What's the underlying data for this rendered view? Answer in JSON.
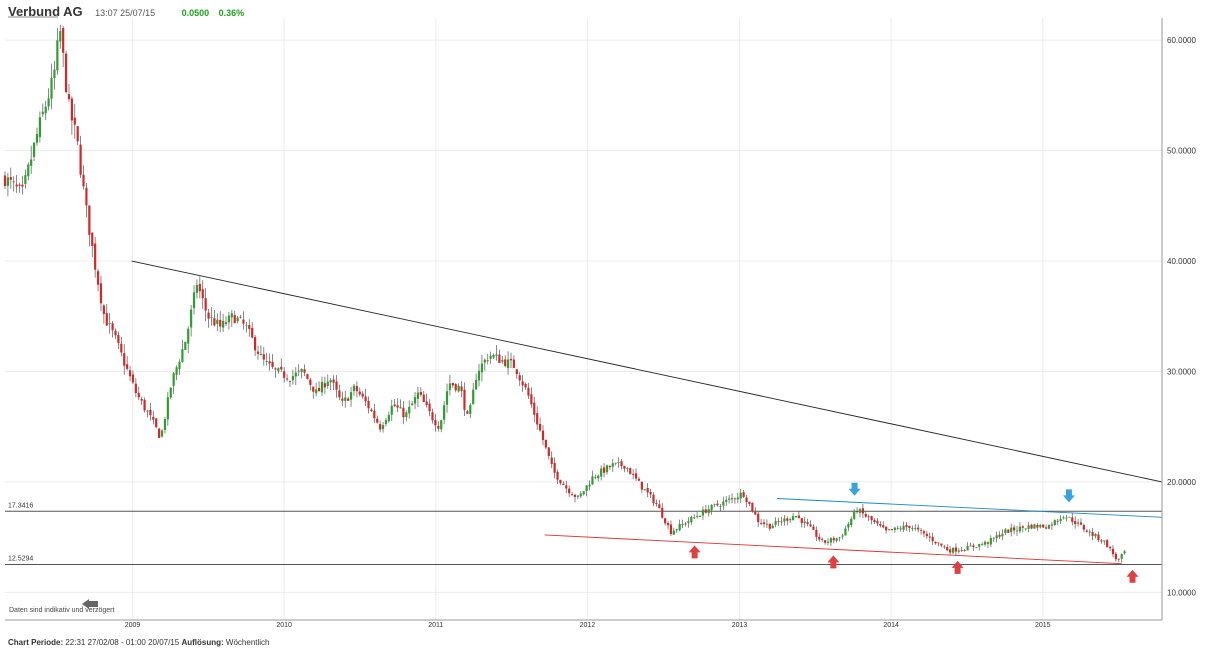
{
  "header": {
    "title": "Verbund AG",
    "timestamp": "13:07 25/07/15",
    "change_abs": "0.0500",
    "change_pct": "0.36%",
    "change_color": "#1fa01f"
  },
  "footer": {
    "period_label": "Chart Periode:",
    "period_value": "22:31 27/02/08 - 01:00 20/07/15",
    "resolution_label": "Auflösung:",
    "resolution_value": "Wöchentlich"
  },
  "disclaimer": "Daten sind indikativ und verzögert",
  "chart_data": {
    "type": "candlestick",
    "title": "Verbund AG",
    "x_start": "2008-02-29",
    "x_end": "2015-10-15",
    "ylim": [
      7.5,
      62
    ],
    "yticks": [
      10,
      20,
      30,
      40,
      50,
      60
    ],
    "ytick_labels": [
      "10.0000",
      "20.0000",
      "30.0000",
      "40.0000",
      "50.0000",
      "60.0000"
    ],
    "xticks": [
      "2009",
      "2010",
      "2011",
      "2012",
      "2013",
      "2014",
      "2015"
    ],
    "xtick_dates": [
      "2009-01-01",
      "2010-01-01",
      "2011-01-01",
      "2012-01-01",
      "2013-01-01",
      "2014-01-01",
      "2015-01-01"
    ],
    "grid": true,
    "up_color": "#2ca02c",
    "down_color": "#d62728",
    "close_anchors": [
      [
        "2008-02-29",
        47.5
      ],
      [
        "2008-04-10",
        46.0
      ],
      [
        "2008-05-20",
        52.0
      ],
      [
        "2008-06-25",
        56.5
      ],
      [
        "2008-07-10",
        61.0
      ],
      [
        "2008-07-31",
        54.0
      ],
      [
        "2008-08-20",
        51.0
      ],
      [
        "2008-09-10",
        45.0
      ],
      [
        "2008-10-01",
        40.0
      ],
      [
        "2008-10-25",
        35.0
      ],
      [
        "2008-11-20",
        33.0
      ],
      [
        "2008-12-15",
        30.5
      ],
      [
        "2009-01-10",
        28.0
      ],
      [
        "2009-02-10",
        26.0
      ],
      [
        "2009-03-10",
        24.0
      ],
      [
        "2009-04-05",
        29.0
      ],
      [
        "2009-05-10",
        33.0
      ],
      [
        "2009-06-05",
        38.0
      ],
      [
        "2009-07-01",
        35.0
      ],
      [
        "2009-08-01",
        34.0
      ],
      [
        "2009-09-01",
        35.0
      ],
      [
        "2009-10-01",
        34.0
      ],
      [
        "2009-11-10",
        31.0
      ],
      [
        "2009-12-10",
        30.0
      ],
      [
        "2010-01-15",
        29.5
      ],
      [
        "2010-02-15",
        30.0
      ],
      [
        "2010-03-20",
        28.0
      ],
      [
        "2010-04-20",
        29.5
      ],
      [
        "2010-05-20",
        27.0
      ],
      [
        "2010-06-20",
        28.5
      ],
      [
        "2010-07-20",
        27.0
      ],
      [
        "2010-08-20",
        25.0
      ],
      [
        "2010-09-20",
        27.0
      ],
      [
        "2010-10-20",
        26.0
      ],
      [
        "2010-11-20",
        28.0
      ],
      [
        "2010-12-20",
        26.0
      ],
      [
        "2011-01-10",
        25.0
      ],
      [
        "2011-02-01",
        29.0
      ],
      [
        "2011-03-01",
        28.5
      ],
      [
        "2011-03-20",
        25.5
      ],
      [
        "2011-04-10",
        30.0
      ],
      [
        "2011-05-10",
        31.5
      ],
      [
        "2011-06-10",
        31.0
      ],
      [
        "2011-07-10",
        30.5
      ],
      [
        "2011-08-10",
        28.0
      ],
      [
        "2011-09-10",
        24.5
      ],
      [
        "2011-10-10",
        21.0
      ],
      [
        "2011-11-10",
        19.5
      ],
      [
        "2011-12-10",
        18.5
      ],
      [
        "2012-01-15",
        20.5
      ],
      [
        "2012-03-01",
        21.5
      ],
      [
        "2012-04-01",
        21.5
      ],
      [
        "2012-05-01",
        20.0
      ],
      [
        "2012-06-15",
        18.0
      ],
      [
        "2012-07-20",
        15.5
      ],
      [
        "2012-09-01",
        16.5
      ],
      [
        "2012-10-15",
        17.5
      ],
      [
        "2012-12-15",
        18.5
      ],
      [
        "2013-01-10",
        19.0
      ],
      [
        "2013-02-15",
        16.5
      ],
      [
        "2013-03-15",
        16.0
      ],
      [
        "2013-04-15",
        16.5
      ],
      [
        "2013-05-15",
        17.0
      ],
      [
        "2013-06-15",
        16.0
      ],
      [
        "2013-07-20",
        14.5
      ],
      [
        "2013-09-01",
        15.0
      ],
      [
        "2013-10-10",
        17.5
      ],
      [
        "2013-11-15",
        16.5
      ],
      [
        "2013-12-20",
        15.5
      ],
      [
        "2014-02-15",
        16.0
      ],
      [
        "2014-04-01",
        15.0
      ],
      [
        "2014-05-20",
        13.8
      ],
      [
        "2014-07-01",
        14.0
      ],
      [
        "2014-08-20",
        14.5
      ],
      [
        "2014-10-01",
        15.5
      ],
      [
        "2014-12-01",
        16.0
      ],
      [
        "2015-01-15",
        16.0
      ],
      [
        "2015-02-20",
        17.0
      ],
      [
        "2015-03-15",
        16.5
      ],
      [
        "2015-04-20",
        15.5
      ],
      [
        "2015-06-01",
        14.5
      ],
      [
        "2015-07-01",
        12.8
      ],
      [
        "2015-07-20",
        13.8
      ]
    ],
    "hlines": [
      {
        "y": 17.3416,
        "label": "17.3416",
        "color": "#555555"
      },
      {
        "y": 12.5294,
        "label": "12.5294",
        "color": "#555555"
      }
    ],
    "trendlines": [
      {
        "x1": "2008-12-30",
        "y1": 40.0,
        "x2": "2015-10-15",
        "y2": 20.0,
        "color": "#222222"
      },
      {
        "x1": "2013-04-01",
        "y1": 18.5,
        "x2": "2015-10-15",
        "y2": 16.8,
        "color": "#1e88c8"
      },
      {
        "x1": "2011-09-20",
        "y1": 15.2,
        "x2": "2015-07-10",
        "y2": 12.6,
        "color": "#e03030"
      }
    ],
    "markers": [
      {
        "type": "down-arrow",
        "x": "2013-10-05",
        "y": 19.2,
        "color": "#3aa3dd"
      },
      {
        "type": "down-arrow",
        "x": "2015-03-05",
        "y": 18.6,
        "color": "#3aa3dd"
      },
      {
        "type": "up-arrow",
        "x": "2012-09-15",
        "y": 13.8,
        "color": "#e04040"
      },
      {
        "type": "up-arrow",
        "x": "2013-08-15",
        "y": 12.9,
        "color": "#e04040"
      },
      {
        "type": "up-arrow",
        "x": "2014-06-10",
        "y": 12.4,
        "color": "#e04040"
      },
      {
        "type": "up-arrow",
        "x": "2015-08-05",
        "y": 11.6,
        "color": "#e04040"
      }
    ]
  }
}
